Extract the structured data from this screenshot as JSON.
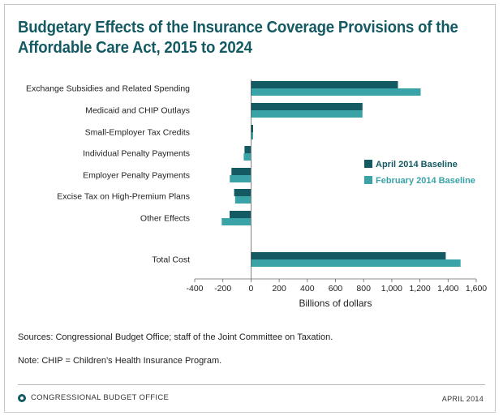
{
  "title": {
    "line1": "Budgetary Effects of the Insurance Coverage Provisions of the",
    "line2": "Affordable Care Act, 2015 to 2024"
  },
  "chart_data": {
    "type": "bar",
    "orientation": "horizontal",
    "title": "Budgetary Effects of the Insurance Coverage Provisions of the Affordable Care Act, 2015 to 2024",
    "categories": [
      "Exchange Subsidies and Related Spending",
      "Medicaid and CHIP Outlays",
      "Small-Employer Tax Credits",
      "Individual Penalty Payments",
      "Employer Penalty Payments",
      "Excise Tax on High-Premium Plans",
      "Other Effects",
      "Total Cost"
    ],
    "series": [
      {
        "name": "April 2014 Baseline",
        "color": "#145a63",
        "values": [
          1044,
          792,
          15,
          -46,
          -139,
          -120,
          -152,
          1383
        ]
      },
      {
        "name": "February 2014 Baseline",
        "color": "#3aa3a8",
        "values": [
          1205,
          792,
          15,
          -52,
          -151,
          -113,
          -208,
          1489
        ]
      }
    ],
    "xlabel": "Billions of dollars",
    "ylabel": "",
    "xlim": [
      -400,
      1600
    ],
    "xticks": [
      -400,
      -200,
      0,
      200,
      400,
      600,
      800,
      1000,
      1200,
      1400,
      1600
    ],
    "xtick_labels": [
      "-400",
      "-200",
      "0",
      "200",
      "400",
      "600",
      "800",
      "1,000",
      "1,200",
      "1,400",
      "1,600"
    ],
    "grid": false,
    "legend_position": "right"
  },
  "footnotes": {
    "sources": "Sources: Congressional Budget Office; staff of the Joint Committee on Taxation.",
    "note": "Note: CHIP = Children’s Health Insurance Program."
  },
  "footer": {
    "org": "CONGRESSIONAL BUDGET OFFICE",
    "date": "APRIL 2014"
  }
}
